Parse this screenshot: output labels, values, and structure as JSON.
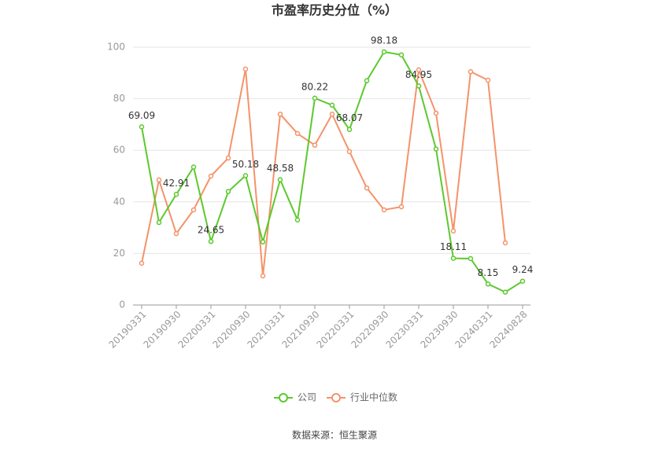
{
  "chart_data": {
    "type": "line",
    "title": "市盈率历史分位（%）",
    "source": "数据来源：恒生聚源",
    "categories": [
      "20190331",
      null,
      "20190930",
      null,
      "20200331",
      null,
      "20200930",
      null,
      "20210331",
      null,
      "20210930",
      null,
      "20220331",
      null,
      "20220930",
      null,
      "20230331",
      null,
      "20230930",
      null,
      "20240331",
      null,
      "20240828"
    ],
    "series": [
      {
        "name": "公司",
        "color": "#5cc92d",
        "values": [
          69.09,
          32,
          42.91,
          53.5,
          24.65,
          44,
          50.18,
          24.5,
          48.58,
          33,
          80.22,
          77.5,
          68.07,
          87,
          98.18,
          97,
          84.95,
          60.5,
          18.11,
          18,
          8.15,
          5,
          9.24
        ],
        "value_labels": [
          "69.09",
          null,
          "42.91",
          null,
          "24.65",
          null,
          "50.18",
          null,
          "48.58",
          null,
          "80.22",
          null,
          "68.07",
          null,
          "98.18",
          null,
          "84.95",
          null,
          "18.11",
          null,
          "8.15",
          null,
          "9.24"
        ]
      },
      {
        "name": "行业中位数",
        "color": "#f4936a",
        "values": [
          16.2,
          48.5,
          27.7,
          36.9,
          50,
          57,
          91.5,
          11.3,
          74,
          66.5,
          62,
          74,
          59.5,
          45.4,
          36.9,
          38.1,
          91.2,
          74.4,
          28.7,
          90.5,
          87.2,
          24.1,
          null
        ]
      }
    ],
    "ylim": [
      0,
      100
    ],
    "yticks": [
      0,
      20,
      40,
      60,
      80,
      100
    ],
    "grid": true
  }
}
